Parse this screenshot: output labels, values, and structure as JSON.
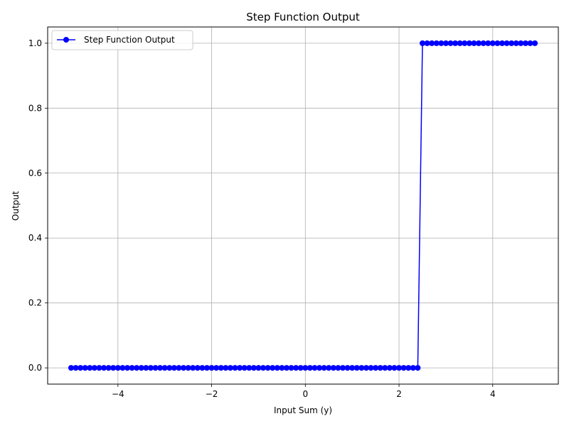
{
  "chart_data": {
    "type": "line",
    "title": "Step Function Output",
    "xlabel": "Input Sum (y)",
    "ylabel": "Output",
    "xlim": [
      -5.5,
      5.4
    ],
    "ylim": [
      -0.05,
      1.05
    ],
    "xticks": [
      -4,
      -2,
      0,
      2,
      4
    ],
    "xtick_labels": [
      "−4",
      "−2",
      "0",
      "2",
      "4"
    ],
    "yticks": [
      0.0,
      0.2,
      0.4,
      0.6,
      0.8,
      1.0
    ],
    "ytick_labels": [
      "0.0",
      "0.2",
      "0.4",
      "0.6",
      "0.8",
      "1.0"
    ],
    "grid": true,
    "legend_position": "top-left",
    "series": [
      {
        "name": "Step Function Output",
        "color": "#0000ff",
        "marker": "circle",
        "x_start": -5.0,
        "x_end": 4.9,
        "x_step": 0.1,
        "threshold": 2.5,
        "y_below": 0,
        "y_at_or_above": 1
      }
    ]
  }
}
